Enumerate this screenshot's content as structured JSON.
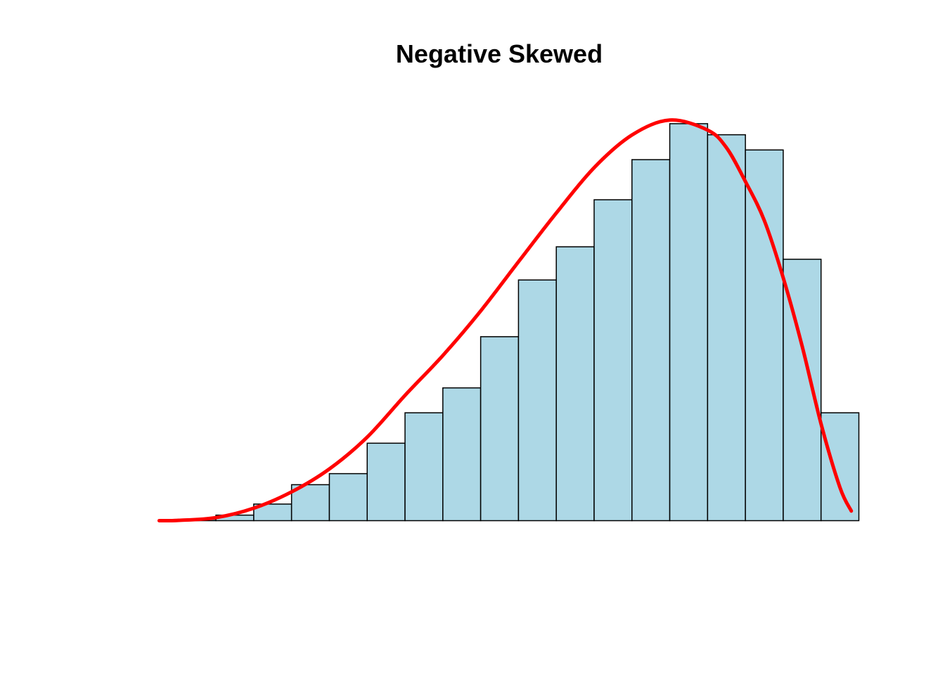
{
  "chart_data": {
    "type": "bar",
    "title": "Negative Skewed",
    "xlabel": "",
    "ylabel": "",
    "bins": [
      [
        0.0,
        0.05
      ],
      [
        0.05,
        0.1
      ],
      [
        0.1,
        0.15
      ],
      [
        0.15,
        0.2
      ],
      [
        0.2,
        0.25
      ],
      [
        0.25,
        0.3
      ],
      [
        0.3,
        0.35
      ],
      [
        0.35,
        0.4
      ],
      [
        0.4,
        0.45
      ],
      [
        0.45,
        0.5
      ],
      [
        0.5,
        0.55
      ],
      [
        0.55,
        0.6
      ],
      [
        0.6,
        0.65
      ],
      [
        0.65,
        0.7
      ],
      [
        0.7,
        0.75
      ],
      [
        0.75,
        0.8
      ],
      [
        0.8,
        0.85
      ],
      [
        0.85,
        0.9
      ],
      [
        0.9,
        0.95
      ]
    ],
    "values": [
      0.0,
      0.005,
      0.02,
      0.06,
      0.13,
      0.17,
      0.28,
      0.39,
      0.48,
      0.665,
      0.87,
      0.99,
      1.16,
      1.305,
      1.435,
      1.395,
      1.34,
      0.945,
      0.39
    ],
    "ylim": [
      0,
      1.45
    ],
    "xlim": [
      0,
      0.95
    ],
    "axes_shown": false,
    "grid": false,
    "colors": {
      "bar_fill": "#ADD8E6",
      "bar_border": "#000000",
      "curve": "#FF0000"
    },
    "density_curve": {
      "type": "line",
      "x": [
        0.025,
        0.05,
        0.1,
        0.15,
        0.2,
        0.25,
        0.3,
        0.35,
        0.4,
        0.45,
        0.5,
        0.55,
        0.6,
        0.65,
        0.7,
        0.75,
        0.775,
        0.8,
        0.825,
        0.85,
        0.875,
        0.9,
        0.925,
        0.94
      ],
      "y": [
        0.0,
        0.001,
        0.011,
        0.045,
        0.104,
        0.187,
        0.302,
        0.453,
        0.597,
        0.758,
        0.936,
        1.112,
        1.276,
        1.394,
        1.448,
        1.412,
        1.348,
        1.226,
        1.085,
        0.878,
        0.631,
        0.35,
        0.12,
        0.035
      ]
    }
  }
}
